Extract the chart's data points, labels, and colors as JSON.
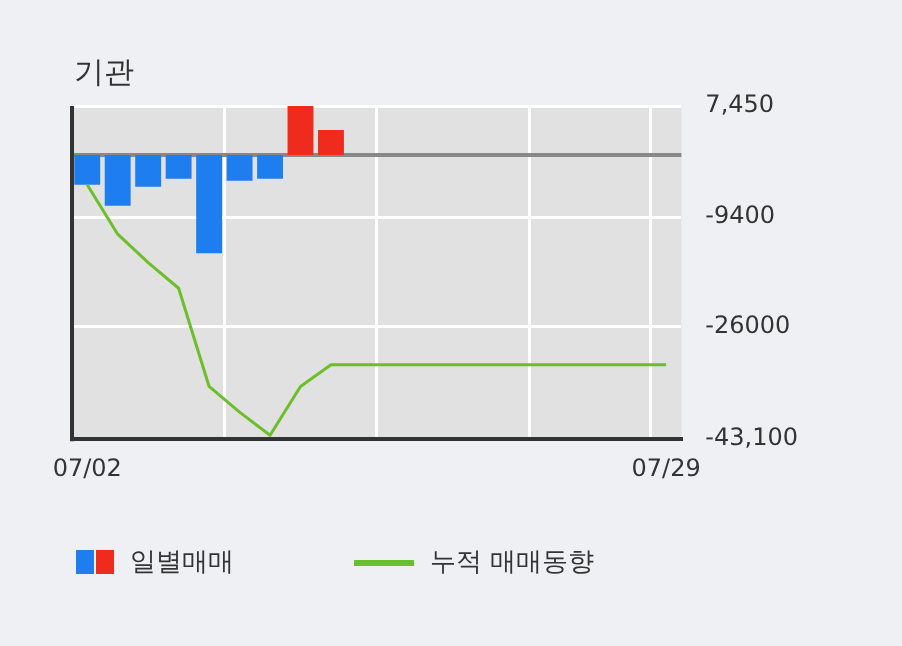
{
  "chart_data": {
    "type": "bar",
    "title": "기관",
    "categories": [
      "07/02",
      null,
      null,
      null,
      null,
      null,
      null,
      null,
      null,
      null,
      null,
      null,
      null,
      null,
      null,
      null,
      null,
      null,
      null,
      "07/29"
    ],
    "series": [
      {
        "name": "일별매매",
        "colors": [
          "#1e7ef0",
          "#1e7ef0",
          "#1e7ef0",
          "#1e7ef0",
          "#1e7ef0",
          "#1e7ef0",
          "#1e7ef0",
          "#ee2b1c",
          "#ee2b1c",
          null,
          null,
          null,
          null,
          null,
          null,
          null,
          null,
          null,
          null,
          null
        ],
        "values": [
          -4500,
          -7700,
          -4800,
          -3600,
          -14900,
          -3900,
          -3600,
          7450,
          3800,
          null,
          null,
          null,
          null,
          null,
          null,
          null,
          null,
          null,
          null,
          null
        ]
      },
      {
        "name": "누적 매매동향",
        "type": "line",
        "color": "#6cbf2a",
        "values": [
          -4500,
          -12000,
          -16300,
          -20200,
          -35100,
          -39000,
          -42500,
          -35100,
          -31800,
          -31800,
          -31800,
          -31800,
          -31800,
          -31800,
          -31800,
          -31800,
          -31800,
          -31800,
          -31800,
          -31800
        ]
      }
    ],
    "ylim": [
      -43100,
      7450
    ],
    "yticks": [
      {
        "value": 7450,
        "label": "7,450"
      },
      {
        "value": -9400,
        "label": "-9400"
      },
      {
        "value": -26000,
        "label": "-26000"
      },
      {
        "value": -43100,
        "label": "-43,100"
      }
    ],
    "ref_lines": [
      {
        "axis": "y",
        "value": 0,
        "color": "#888888"
      }
    ],
    "grid": true,
    "legend": "bottom",
    "marker": "none"
  }
}
